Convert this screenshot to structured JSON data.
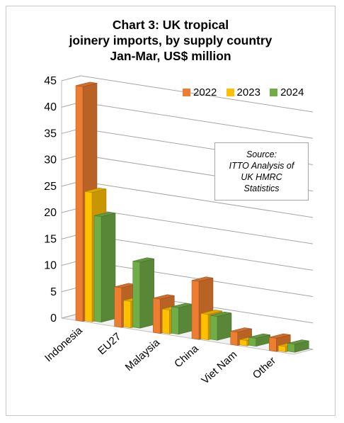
{
  "title_lines": [
    "Chart 3: UK tropical",
    "joinery imports, by supply country",
    "Jan-Mar, US$ million"
  ],
  "source_lines": [
    "Source:",
    "ITTO Analysis of",
    "UK HMRC",
    "Statistics"
  ],
  "colors": {
    "2022": "#ed7d31",
    "2023": "#ffc000",
    "2024": "#70ad47"
  },
  "chart_data": {
    "type": "bar",
    "title": "Chart 3: UK tropical joinery imports, by supply country Jan-Mar, US$ million",
    "categories": [
      "Indonesia",
      "EU27",
      "Malaysia",
      "China",
      "Viet Nam",
      "Other"
    ],
    "series": [
      {
        "name": "2022",
        "values": [
          44.5,
          7.5,
          6.5,
          11.0,
          2.5,
          2.5
        ]
      },
      {
        "name": "2023",
        "values": [
          24.5,
          5.0,
          4.5,
          4.8,
          1.0,
          1.0
        ]
      },
      {
        "name": "2024",
        "values": [
          20.0,
          12.5,
          5.0,
          4.5,
          1.5,
          1.5
        ]
      }
    ],
    "ylim": [
      0,
      45
    ],
    "yticks": [
      "0",
      "5",
      "10",
      "15",
      "20",
      "25",
      "30",
      "35",
      "40",
      "45"
    ],
    "grid": true,
    "legend_position": "top-right",
    "projection": "3d"
  }
}
